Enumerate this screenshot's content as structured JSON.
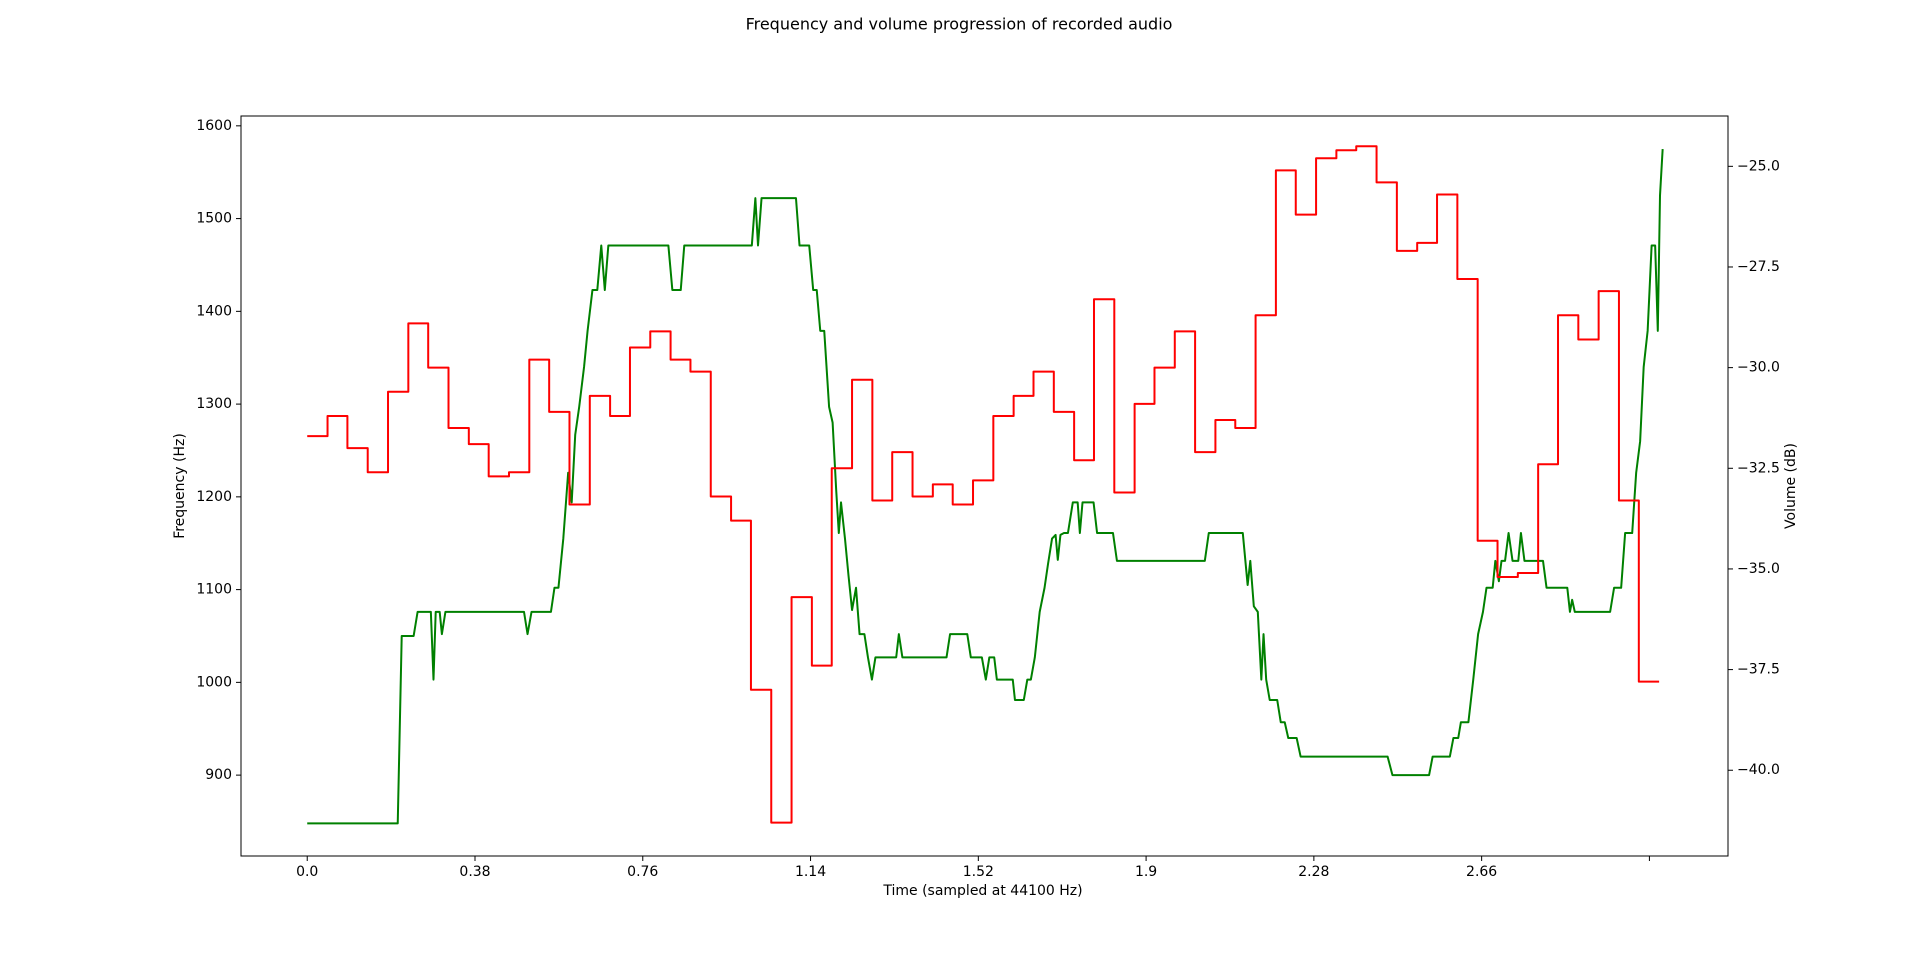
{
  "chart_data": {
    "type": "line",
    "title": "Frequency and volume progression of recorded audio",
    "xlabel": "Time (sampled at 44100 Hz)",
    "ylabel": "Frequency (Hz)",
    "y2label": "Volume (dB)",
    "xlim": [
      -0.15,
      3.218
    ],
    "ylim": [
      812.8,
      1610.6
    ],
    "y2lim": [
      -42.13,
      -23.75
    ],
    "xticks": [
      {
        "value": 0,
        "label": "0.0"
      },
      0.38,
      0.76,
      1.14,
      1.52,
      1.9,
      2.28,
      2.66,
      {
        "value": 3.04,
        "label": null
      }
    ],
    "yticks": [
      900,
      1000,
      1100,
      1200,
      1300,
      1400,
      1500,
      1600
    ],
    "y2ticks": [
      {
        "value": -40,
        "label": "−40.0"
      },
      {
        "value": -37.5,
        "label": "−37.5"
      },
      {
        "value": -35,
        "label": "−35.0"
      },
      {
        "value": -32.5,
        "label": "−32.5"
      },
      {
        "value": -30,
        "label": "−30.0"
      },
      {
        "value": -27.5,
        "label": "−27.5"
      },
      {
        "value": -25,
        "label": "−25.0"
      }
    ],
    "series": [
      {
        "name": "Frequency (Hz)",
        "color": "#008000",
        "axis": "y",
        "x": [
          0,
          0.205,
          0.214,
          0.241,
          0.25,
          0.28,
          0.286,
          0.291,
          0.3,
          0.305,
          0.313,
          0.491,
          0.499,
          0.508,
          0.552,
          0.56,
          0.569,
          0.58,
          0.591,
          0.599,
          0.607,
          0.616,
          0.627,
          0.635,
          0.646,
          0.657,
          0.666,
          0.674,
          0.682,
          0.818,
          0.827,
          0.846,
          0.854,
          1.007,
          1.015,
          1.021,
          1.029,
          1.107,
          1.115,
          1.137,
          1.146,
          1.154,
          1.162,
          1.171,
          1.182,
          1.19,
          1.198,
          1.204,
          1.209,
          1.218,
          1.226,
          1.234,
          1.243,
          1.251,
          1.262,
          1.27,
          1.279,
          1.287,
          1.334,
          1.34,
          1.348,
          1.448,
          1.456,
          1.495,
          1.503,
          1.528,
          1.537,
          1.545,
          1.556,
          1.562,
          1.598,
          1.603,
          1.623,
          1.631,
          1.639,
          1.648,
          1.659,
          1.67,
          1.678,
          1.687,
          1.695,
          1.7,
          1.706,
          1.714,
          1.723,
          1.734,
          1.745,
          1.75,
          1.756,
          1.781,
          1.789,
          1.825,
          1.834,
          2.033,
          2.042,
          2.119,
          2.13,
          2.136,
          2.144,
          2.153,
          2.161,
          2.166,
          2.172,
          2.18,
          2.197,
          2.205,
          2.214,
          2.222,
          2.241,
          2.25,
          2.447,
          2.458,
          2.541,
          2.549,
          2.588,
          2.596,
          2.607,
          2.613,
          2.63,
          2.641,
          2.652,
          2.663,
          2.671,
          2.685,
          2.691,
          2.699,
          2.705,
          2.713,
          2.721,
          2.73,
          2.743,
          2.749,
          2.757,
          2.799,
          2.807,
          2.854,
          2.86,
          2.865,
          2.871,
          2.951,
          2.96,
          2.976,
          2.985,
          3.001,
          3.01,
          3.019,
          3.027,
          3.036,
          3.045,
          3.053,
          3.059,
          3.064,
          3.07
        ],
        "values": [
          848,
          848,
          1050,
          1050,
          1076,
          1076,
          1003,
          1076,
          1076,
          1052,
          1076,
          1076,
          1052,
          1076,
          1076,
          1102,
          1102,
          1155,
          1226,
          1194,
          1267,
          1297,
          1340,
          1379,
          1423,
          1423,
          1471,
          1423,
          1471,
          1471,
          1423,
          1423,
          1471,
          1471,
          1522,
          1471,
          1522,
          1522,
          1471,
          1471,
          1423,
          1423,
          1379,
          1379,
          1297,
          1280,
          1208,
          1161,
          1194,
          1155,
          1115,
          1078,
          1102,
          1052,
          1052,
          1027,
          1003,
          1027,
          1027,
          1052,
          1027,
          1027,
          1052,
          1052,
          1027,
          1027,
          1003,
          1027,
          1027,
          1003,
          1003,
          981,
          981,
          1003,
          1003,
          1027,
          1076,
          1102,
          1128,
          1155,
          1159,
          1132,
          1159,
          1161,
          1161,
          1194,
          1194,
          1161,
          1194,
          1194,
          1161,
          1161,
          1131,
          1131,
          1161,
          1161,
          1105,
          1131,
          1082,
          1076,
          1003,
          1052,
          1003,
          981,
          981,
          957,
          957,
          940,
          940,
          920,
          920,
          900,
          900,
          920,
          920,
          940,
          940,
          957,
          957,
          1003,
          1052,
          1076,
          1102,
          1102,
          1131,
          1109,
          1131,
          1131,
          1161,
          1131,
          1131,
          1161,
          1131,
          1131,
          1102,
          1102,
          1076,
          1089,
          1076,
          1076,
          1102,
          1102,
          1161,
          1161,
          1226,
          1260,
          1340,
          1379,
          1471,
          1471,
          1379,
          1525,
          1575
        ]
      },
      {
        "name": "Volume (dB)",
        "color": "#ff0000",
        "axis": "y2",
        "drawstyle": "steps-post",
        "x": [
          0,
          0.046,
          0.091,
          0.137,
          0.183,
          0.229,
          0.274,
          0.32,
          0.366,
          0.411,
          0.457,
          0.503,
          0.548,
          0.594,
          0.64,
          0.686,
          0.731,
          0.777,
          0.823,
          0.868,
          0.914,
          0.96,
          1.005,
          1.051,
          1.097,
          1.143,
          1.188,
          1.234,
          1.28,
          1.325,
          1.371,
          1.417,
          1.462,
          1.508,
          1.554,
          1.6,
          1.645,
          1.691,
          1.737,
          1.782,
          1.828,
          1.874,
          1.919,
          1.965,
          2.011,
          2.057,
          2.102,
          2.148,
          2.194,
          2.239,
          2.285,
          2.331,
          2.376,
          2.422,
          2.468,
          2.514,
          2.559,
          2.605,
          2.651,
          2.696,
          2.742,
          2.788,
          2.833,
          2.879,
          2.925,
          2.971,
          3.016,
          3.062
        ],
        "values": [
          -31.7,
          -31.2,
          -32.0,
          -32.6,
          -30.6,
          -28.9,
          -30.0,
          -31.5,
          -31.9,
          -32.7,
          -32.6,
          -29.8,
          -31.1,
          -33.4,
          -30.7,
          -31.2,
          -29.5,
          -29.1,
          -29.8,
          -30.1,
          -33.2,
          -33.8,
          -38.0,
          -41.3,
          -35.7,
          -37.4,
          -32.5,
          -30.3,
          -33.3,
          -32.1,
          -33.2,
          -32.9,
          -33.4,
          -32.8,
          -31.2,
          -30.7,
          -30.1,
          -31.1,
          -32.3,
          -28.3,
          -33.1,
          -30.9,
          -30.0,
          -29.1,
          -32.1,
          -31.3,
          -31.5,
          -28.7,
          -25.1,
          -26.2,
          -24.8,
          -24.6,
          -24.5,
          -25.4,
          -27.1,
          -26.9,
          -25.7,
          -27.8,
          -34.3,
          -35.2,
          -35.1,
          -32.4,
          -28.7,
          -29.3,
          -28.1,
          -33.3,
          -37.8,
          -37.8
        ]
      }
    ]
  }
}
